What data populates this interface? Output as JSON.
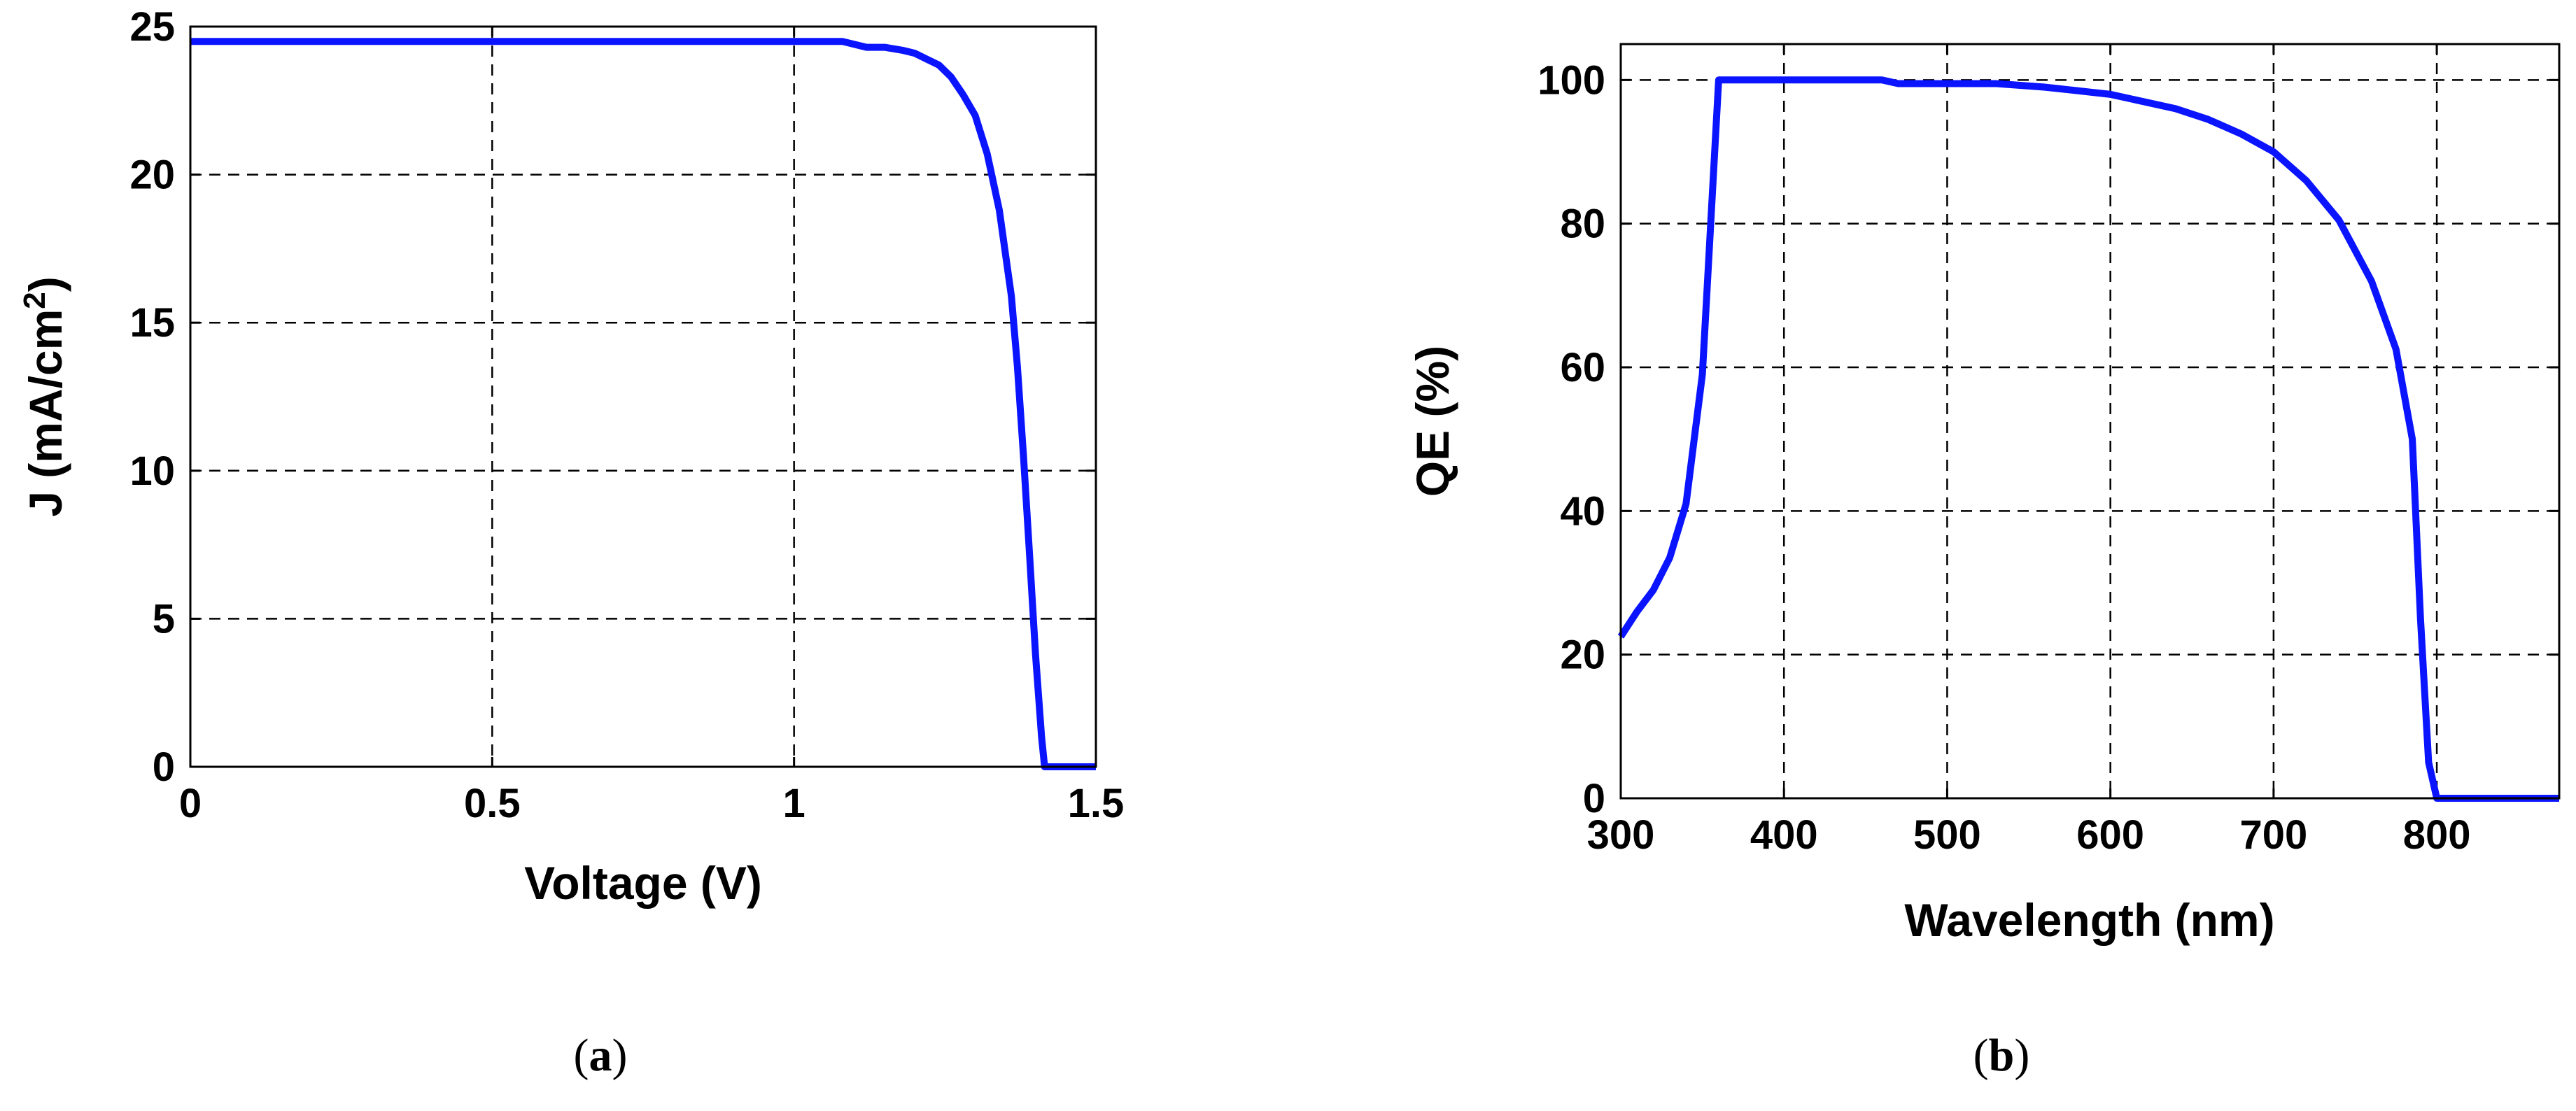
{
  "colors": {
    "series": "#0a14ff",
    "axes": "#000000",
    "background": "#ffffff"
  },
  "chart_data": [
    {
      "type": "line",
      "panel": "a",
      "caption": "(a)",
      "caption_letter": "a",
      "xlabel": "Voltage (V)",
      "ylabel": "J (mA/cm",
      "ylabel_superscript": "2",
      "ylabel_close": ")",
      "xlim": [
        0,
        1.5
      ],
      "ylim": [
        0,
        25
      ],
      "xticks": [
        0,
        0.5,
        1,
        1.5
      ],
      "xtick_labels": [
        "0",
        "0.5",
        "1",
        "1.5"
      ],
      "yticks": [
        0,
        5,
        10,
        15,
        20,
        25
      ],
      "ytick_labels": [
        "0",
        "5",
        "10",
        "15",
        "20",
        "25"
      ],
      "grid": true,
      "series": [
        {
          "x": [
            0,
            0.2,
            0.4,
            0.6,
            0.8,
            1.0,
            1.08,
            1.12,
            1.15,
            1.18,
            1.2,
            1.22,
            1.24,
            1.26,
            1.28,
            1.3,
            1.32,
            1.34,
            1.36,
            1.37,
            1.38,
            1.39,
            1.4,
            1.41,
            1.415,
            1.42,
            1.45,
            1.5
          ],
          "y": [
            24.5,
            24.5,
            24.5,
            24.5,
            24.5,
            24.5,
            24.5,
            24.3,
            24.3,
            24.2,
            24.1,
            23.9,
            23.7,
            23.3,
            22.7,
            22.0,
            20.7,
            18.8,
            15.9,
            13.5,
            10.5,
            7.2,
            3.8,
            1.0,
            0,
            0,
            0,
            0
          ]
        }
      ]
    },
    {
      "type": "line",
      "panel": "b",
      "caption": "(b)",
      "caption_letter": "b",
      "xlabel": "Wavelength (nm)",
      "ylabel": "QE (%)",
      "xlim": [
        300,
        875
      ],
      "ylim": [
        0,
        105
      ],
      "xticks": [
        300,
        400,
        500,
        600,
        700,
        800
      ],
      "xtick_labels": [
        "300",
        "400",
        "500",
        "600",
        "700",
        "800"
      ],
      "yticks": [
        0,
        20,
        40,
        60,
        80,
        100
      ],
      "ytick_labels": [
        "0",
        "20",
        "40",
        "60",
        "80",
        "100"
      ],
      "grid": true,
      "series": [
        {
          "x": [
            300,
            310,
            320,
            330,
            340,
            350,
            360,
            370,
            400,
            430,
            460,
            470,
            500,
            530,
            560,
            580,
            600,
            620,
            640,
            660,
            680,
            700,
            720,
            740,
            760,
            775,
            785,
            790,
            795,
            800,
            820,
            850,
            875
          ],
          "y": [
            22.5,
            26,
            29,
            33.5,
            41,
            59,
            100,
            100,
            100,
            100,
            100,
            99.5,
            99.5,
            99.5,
            99,
            98.5,
            98,
            97,
            96,
            94.5,
            92.5,
            90,
            86,
            80.5,
            72,
            62.5,
            50,
            25,
            5,
            0,
            0,
            0,
            0
          ]
        }
      ]
    }
  ]
}
